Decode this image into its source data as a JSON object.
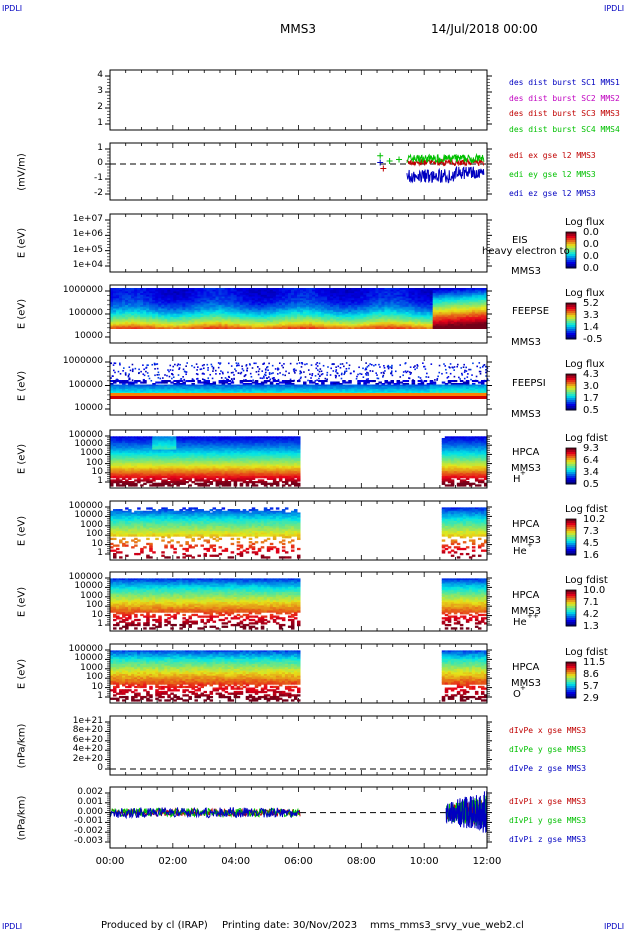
{
  "header": {
    "corner_left_top": "IPDLI",
    "corner_right_top": "IPDLI",
    "corner_left_bottom": "IPDLI",
    "corner_right_bottom": "IPDLI",
    "title": "MMS3",
    "date": "14/Jul/2018 00:00"
  },
  "footer": {
    "produced": "Produced by cl (IRAP)",
    "printing": "Printing date: 30/Nov/2023",
    "script": "mms_mms3_srvy_vue_web2.cl"
  },
  "colors": {
    "ink": "#000000",
    "blue": "#0000c0",
    "green": "#00c000",
    "red": "#c00000",
    "magenta": "#c000c0"
  },
  "chart_data": [
    {
      "id": "p1",
      "type": "table",
      "y_ticks": [
        "4",
        "3",
        "2",
        "1"
      ],
      "legend": [
        {
          "text": "des dist burst SC1 MMS1",
          "color": "#0000c0"
        },
        {
          "text": "des dist burst SC2 MMS2",
          "color": "#c000c0"
        },
        {
          "text": "des dist burst SC3 MMS3",
          "color": "#c00000"
        },
        {
          "text": "des dist burst SC4 MMS4",
          "color": "#00c000"
        }
      ]
    },
    {
      "id": "p2",
      "type": "line",
      "ylabel": "(mV/m)",
      "y_ticks": [
        "1",
        "0",
        "-1",
        "-2"
      ],
      "ylim": [
        -2,
        1.5
      ],
      "legend": [
        {
          "text": "edi ex gse l2 MMS3",
          "color": "#c00000"
        },
        {
          "text": "edi ey gse l2 MMS3",
          "color": "#00c000"
        },
        {
          "text": "edi ez gse l2 MMS3",
          "color": "#0000c0"
        }
      ]
    },
    {
      "id": "p3",
      "type": "heatmap",
      "ylabel": "E (eV)",
      "y_ticks": [
        "1e+07",
        "1e+06",
        "1e+05",
        "1e+04"
      ],
      "instrument": "EIS",
      "spacecraft": "MMS3",
      "overlay_text": "heavy electron to",
      "colorbar_title": "Log flux",
      "colorbar_ticks": [
        "0.0",
        "0.0",
        "0.0",
        "0.0"
      ]
    },
    {
      "id": "p4",
      "type": "heatmap",
      "ylabel": "E (eV)",
      "y_ticks": [
        "1000000",
        "100000",
        "10000"
      ],
      "instrument": "FEEPSE",
      "spacecraft": "MMS3",
      "colorbar_title": "Log flux",
      "colorbar_ticks": [
        "5.2",
        "3.3",
        "1.4",
        "-0.5"
      ]
    },
    {
      "id": "p5",
      "type": "heatmap",
      "ylabel": "E (eV)",
      "y_ticks": [
        "1000000",
        "100000",
        "10000"
      ],
      "instrument": "FEEPSI",
      "spacecraft": "MMS3",
      "colorbar_title": "Log flux",
      "colorbar_ticks": [
        "4.3",
        "3.0",
        "1.7",
        "0.5"
      ]
    },
    {
      "id": "p6",
      "type": "heatmap",
      "ylabel": "E (eV)",
      "y_ticks": [
        "100000",
        "10000",
        "1000",
        "100",
        "10",
        "1"
      ],
      "instrument": "HPCA",
      "spacecraft": "MMS3",
      "species": "H",
      "charge": "+",
      "colorbar_title": "Log fdist",
      "colorbar_ticks": [
        "9.3",
        "6.4",
        "3.4",
        "0.5"
      ]
    },
    {
      "id": "p7",
      "type": "heatmap",
      "ylabel": "E (eV)",
      "y_ticks": [
        "100000",
        "10000",
        "1000",
        "100",
        "10",
        "1"
      ],
      "instrument": "HPCA",
      "spacecraft": "MMS3",
      "species": "He",
      "charge": "+",
      "colorbar_title": "Log fdist",
      "colorbar_ticks": [
        "10.2",
        "7.3",
        "4.5",
        "1.6"
      ]
    },
    {
      "id": "p8",
      "type": "heatmap",
      "ylabel": "E (eV)",
      "y_ticks": [
        "100000",
        "10000",
        "1000",
        "100",
        "10",
        "1"
      ],
      "instrument": "HPCA",
      "spacecraft": "MMS3",
      "species": "He",
      "charge": "++",
      "colorbar_title": "Log fdist",
      "colorbar_ticks": [
        "10.0",
        "7.1",
        "4.2",
        "1.3"
      ]
    },
    {
      "id": "p9",
      "type": "heatmap",
      "ylabel": "E (eV)",
      "y_ticks": [
        "100000",
        "10000",
        "1000",
        "100",
        "10",
        "1"
      ],
      "instrument": "HPCA",
      "spacecraft": "MMS3",
      "species": "O",
      "charge": "+",
      "colorbar_title": "Log fdist",
      "colorbar_ticks": [
        "11.5",
        "8.6",
        "5.7",
        "2.9"
      ]
    },
    {
      "id": "p10",
      "type": "line",
      "ylabel": "(nPa/km)",
      "y_ticks": [
        "1e+21",
        "8e+20",
        "6e+20",
        "4e+20",
        "2e+20",
        "0"
      ],
      "ylim": [
        -1e+20,
        1.1e+21
      ],
      "legend": [
        {
          "text": "dIvPe x gse MMS3",
          "color": "#c00000"
        },
        {
          "text": "dIvPe y gse MMS3",
          "color": "#00c000"
        },
        {
          "text": "dIvPe z gse MMS3",
          "color": "#0000c0"
        }
      ]
    },
    {
      "id": "p11",
      "type": "line",
      "ylabel": "(nPa/km)",
      "y_ticks": [
        "0.002",
        "0.001",
        "0.000",
        "-0.001",
        "-0.002",
        "-0.003"
      ],
      "ylim": [
        -0.0033,
        0.0025
      ],
      "legend": [
        {
          "text": "dIvPi x gse MMS3",
          "color": "#c00000"
        },
        {
          "text": "dIvPi y gse MMS3",
          "color": "#00c000"
        },
        {
          "text": "dIvPi z gse MMS3",
          "color": "#0000c0"
        }
      ]
    }
  ],
  "x_axis": {
    "ticks": [
      "00:00",
      "02:00",
      "04:00",
      "06:00",
      "08:00",
      "10:00",
      "12:00"
    ],
    "xlim_hours": [
      0,
      12
    ]
  }
}
